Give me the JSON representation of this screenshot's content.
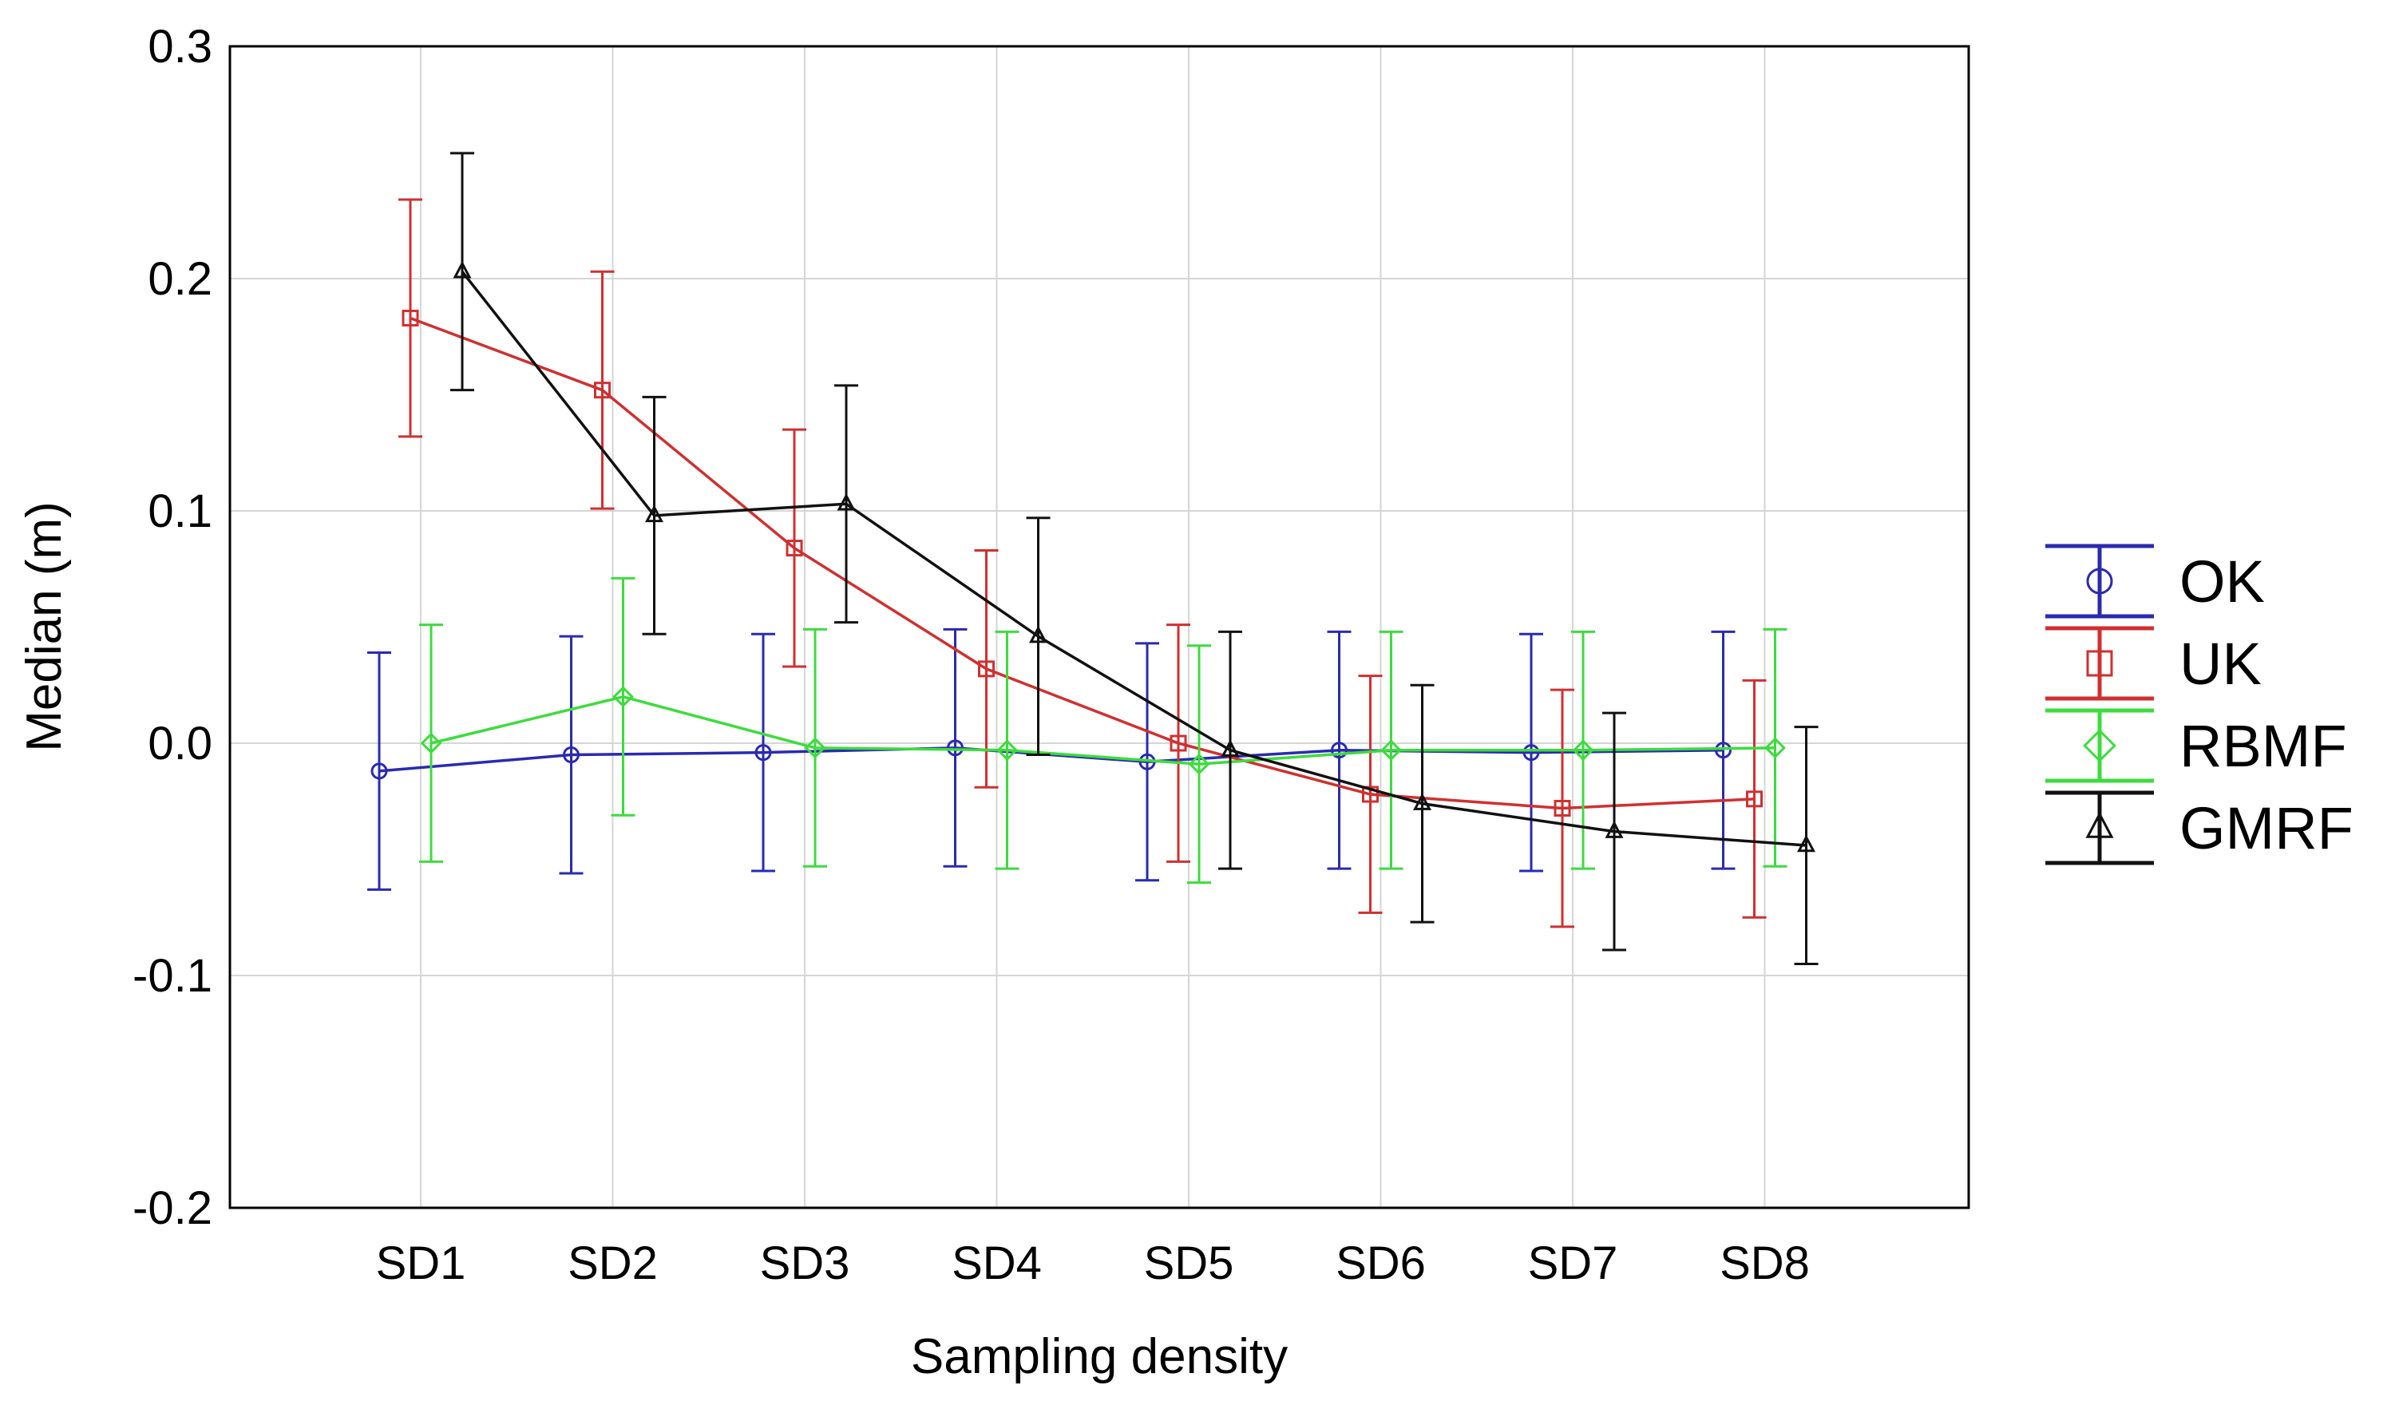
{
  "chart_data": {
    "type": "line",
    "title": "",
    "xlabel": "Sampling density",
    "ylabel": "Median (m)",
    "categories": [
      "SD1",
      "SD2",
      "SD3",
      "SD4",
      "SD5",
      "SD6",
      "SD7",
      "SD8"
    ],
    "ylim": [
      -0.2,
      0.3
    ],
    "yticks": [
      {
        "value": 0.3,
        "label": "0.3"
      },
      {
        "value": 0.2,
        "label": "0.2"
      },
      {
        "value": 0.1,
        "label": "0.1"
      },
      {
        "value": 0.0,
        "label": "0.0"
      },
      {
        "value": -0.1,
        "label": "-0.1"
      },
      {
        "value": -0.2,
        "label": "-0.2"
      }
    ],
    "grid": true,
    "legend_position": "right",
    "error_bar_halfwidth": 0.051,
    "series": [
      {
        "name": "OK",
        "color": "#2a2ab0",
        "marker": "circle",
        "values": [
          -0.012,
          -0.005,
          -0.004,
          -0.002,
          -0.008,
          -0.003,
          -0.004,
          -0.003
        ]
      },
      {
        "name": "UK",
        "color": "#d03030",
        "marker": "square",
        "values": [
          0.183,
          0.152,
          0.084,
          0.032,
          0.0,
          -0.022,
          -0.028,
          -0.024
        ]
      },
      {
        "name": "RBMF",
        "color": "#3ddc3d",
        "marker": "diamond",
        "values": [
          0.0,
          0.02,
          -0.002,
          -0.003,
          -0.009,
          -0.003,
          -0.003,
          -0.002
        ]
      },
      {
        "name": "GMRF",
        "color": "#111111",
        "marker": "triangle",
        "values": [
          0.203,
          0.098,
          0.103,
          0.046,
          -0.003,
          -0.026,
          -0.038,
          -0.044
        ]
      }
    ]
  }
}
